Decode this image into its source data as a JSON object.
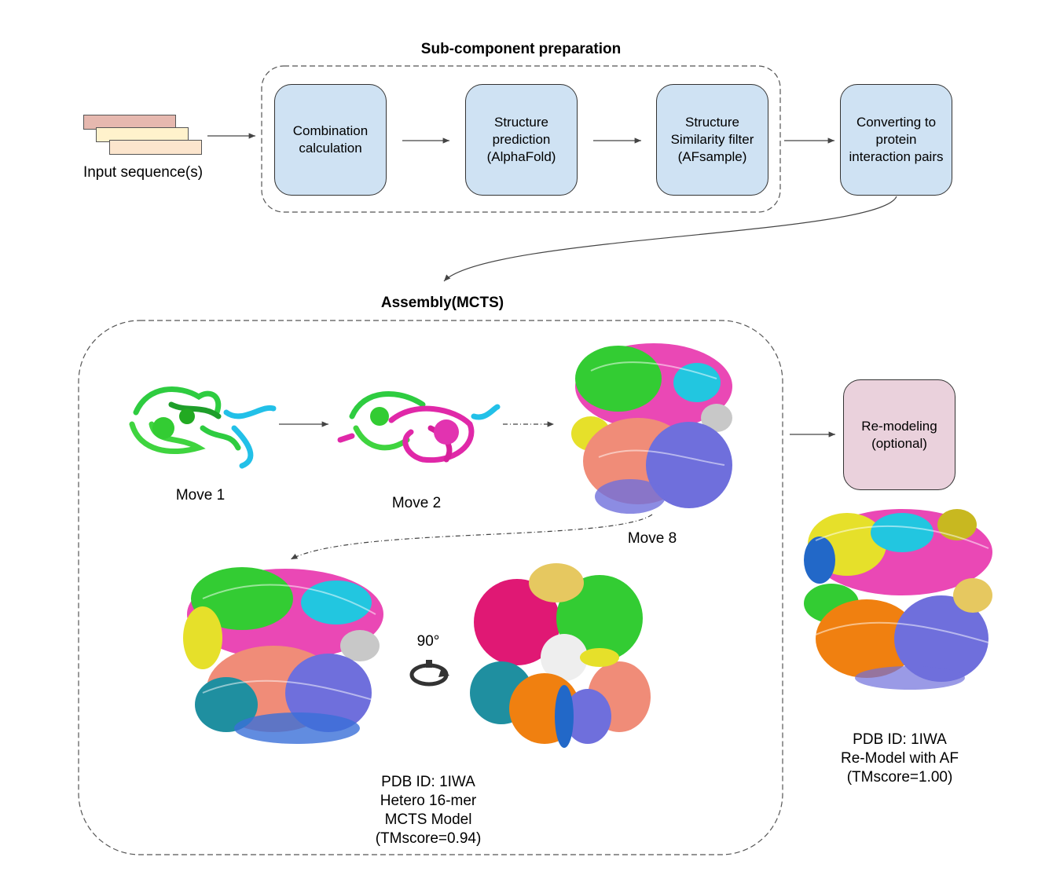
{
  "sections": {
    "prep_title": "Sub-component preparation",
    "assembly_title": "Assembly(MCTS)"
  },
  "input": {
    "label": "Input sequence(s)"
  },
  "steps": {
    "combination": "Combination calculation",
    "prediction": "Structure prediction (AlphaFold)",
    "similarity": "Structure Similarity filter (AFsample)",
    "converting": "Converting to protein interaction pairs",
    "remodeling": "Re-modeling (optional)"
  },
  "moves": {
    "move1": "Move 1",
    "move2": "Move 2",
    "move8": "Move 8"
  },
  "rotation_label": "90°",
  "mcts_model": {
    "line1": "PDB ID: 1IWA",
    "line2": "Hetero 16-mer",
    "line3": "MCTS Model",
    "line4": "(TMscore=0.94)"
  },
  "remodel_result": {
    "line1": "PDB ID: 1IWA",
    "line2": "Re-Model with AF",
    "line3": "(TMscore=1.00)"
  },
  "colors": {
    "step_fill": "#cfe2f3",
    "remodel_fill": "#ead1dc",
    "seq1": "#e6b8af",
    "seq2": "#fff2cc",
    "seq3": "#fce5cd"
  },
  "protein_chain_colors": [
    "green",
    "magenta",
    "cyan",
    "salmon",
    "slate-blue",
    "yellow",
    "orange",
    "teal",
    "gray"
  ]
}
